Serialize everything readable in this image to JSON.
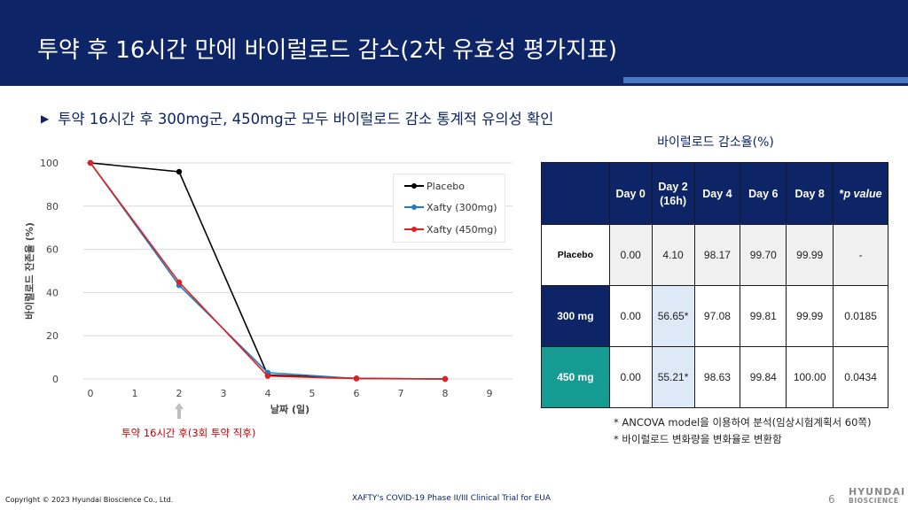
{
  "header": {
    "title": "투약 후 16시간 만에 바이럴로드 감소(2차 유효성 평가지표)"
  },
  "bullet": {
    "text": "투약 16시간 후 300mg군, 450mg군 모두 바이럴로드 감소 통계적 유의성 확인"
  },
  "chart_data": {
    "type": "line",
    "title": "",
    "xlabel": "날짜 (일)",
    "ylabel": "바이럴로드 잔존율 (%)",
    "xlim": [
      0,
      9
    ],
    "ylim": [
      0,
      100
    ],
    "x_ticks": [
      "0",
      "1",
      "2",
      "3",
      "4",
      "5",
      "6",
      "7",
      "8",
      "9"
    ],
    "y_ticks": [
      "0",
      "20",
      "40",
      "60",
      "80",
      "100"
    ],
    "grid": true,
    "legend_position": "top-right",
    "x": [
      0,
      2,
      4,
      6,
      8
    ],
    "series": [
      {
        "name": "Placebo",
        "color": "#000000",
        "values": [
          100,
          95.9,
          1.8,
          0.3,
          0.0
        ]
      },
      {
        "name": "Xafty (300mg)",
        "color": "#1f7ec2",
        "values": [
          100,
          43.35,
          2.92,
          0.19,
          0.01
        ]
      },
      {
        "name": "Xafty (450mg)",
        "color": "#e02020",
        "values": [
          100,
          44.79,
          1.37,
          0.16,
          0.0
        ]
      }
    ],
    "annotation": "투약 16시간 후(3회 투약 직후)"
  },
  "table": {
    "title": "바이럴로드 감소율(%)",
    "headers": {
      "day0": "Day 0",
      "day2_line1": "Day 2",
      "day2_line2": "(16h)",
      "day4": "Day 4",
      "day6": "Day 6",
      "day8": "Day 8",
      "pval_prefix": "*",
      "pval": "p value"
    },
    "rows": [
      {
        "label": "Placebo",
        "cells": [
          "0.00",
          "4.10",
          "98.17",
          "99.70",
          "99.99",
          "-"
        ]
      },
      {
        "label": "300 mg",
        "cells": [
          "0.00",
          "56.65*",
          "97.08",
          "99.81",
          "99.99",
          "0.0185"
        ]
      },
      {
        "label": "450 mg",
        "cells": [
          "0.00",
          "55.21*",
          "98.63",
          "99.84",
          "100.00",
          "0.0434"
        ]
      }
    ]
  },
  "footnotes": [
    "* ANCOVA model을 이용하여 분석(임상시험계획서 60쪽)",
    "* 바이럴로드 변화량을 변화율로 변환함"
  ],
  "footer": {
    "copyright": "Copyright © 2023 Hyundai Bioscience Co., Ltd.",
    "center": "XAFTY's COVID-19 Phase II/III Clinical Trial for EUA",
    "page": "6",
    "logo_line1": "HYUNDAI",
    "logo_line2": "BIOSCIENCE"
  }
}
